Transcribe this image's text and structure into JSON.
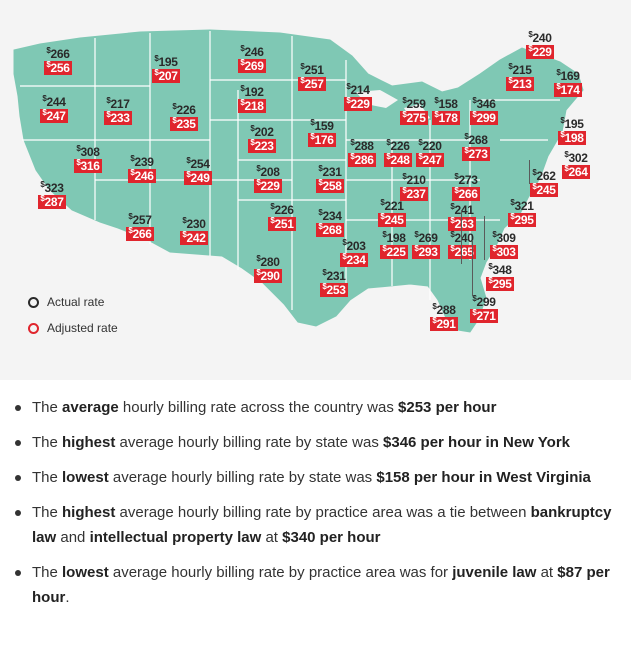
{
  "map": {
    "colors": {
      "land": "#7fc8b4",
      "border": "#ffffff",
      "badge": "#e0252d",
      "actual_text": "#2a2a2a",
      "background": "#f4f4f4"
    },
    "currency_symbol": "$",
    "states": [
      {
        "actual": "266",
        "adjusted": "256"
      },
      {
        "actual": "195",
        "adjusted": "207"
      },
      {
        "actual": "246",
        "adjusted": "269"
      },
      {
        "actual": "251",
        "adjusted": "257"
      },
      {
        "actual": "240",
        "adjusted": "229"
      },
      {
        "actual": "215",
        "adjusted": "213"
      },
      {
        "actual": "169",
        "adjusted": "174"
      },
      {
        "actual": "244",
        "adjusted": "247"
      },
      {
        "actual": "217",
        "adjusted": "233"
      },
      {
        "actual": "192",
        "adjusted": "218"
      },
      {
        "actual": "226",
        "adjusted": "235"
      },
      {
        "actual": "214",
        "adjusted": "229"
      },
      {
        "actual": "259",
        "adjusted": "275"
      },
      {
        "actual": "158",
        "adjusted": "178"
      },
      {
        "actual": "346",
        "adjusted": "299"
      },
      {
        "actual": "195",
        "adjusted": "198"
      },
      {
        "actual": "202",
        "adjusted": "223"
      },
      {
        "actual": "159",
        "adjusted": "176"
      },
      {
        "actual": "268",
        "adjusted": "273"
      },
      {
        "actual": "308",
        "adjusted": "316"
      },
      {
        "actual": "288",
        "adjusted": "286"
      },
      {
        "actual": "226",
        "adjusted": "248"
      },
      {
        "actual": "220",
        "adjusted": "247"
      },
      {
        "actual": "302",
        "adjusted": "264"
      },
      {
        "actual": "239",
        "adjusted": "246"
      },
      {
        "actual": "254",
        "adjusted": "249"
      },
      {
        "actual": "208",
        "adjusted": "229"
      },
      {
        "actual": "231",
        "adjusted": "258"
      },
      {
        "actual": "210",
        "adjusted": "237"
      },
      {
        "actual": "273",
        "adjusted": "266"
      },
      {
        "actual": "262",
        "adjusted": "245"
      },
      {
        "actual": "323",
        "adjusted": "287"
      },
      {
        "actual": "321",
        "adjusted": "295"
      },
      {
        "actual": "221",
        "adjusted": "245"
      },
      {
        "actual": "241",
        "adjusted": "263"
      },
      {
        "actual": "226",
        "adjusted": "251"
      },
      {
        "actual": "234",
        "adjusted": "268"
      },
      {
        "actual": "257",
        "adjusted": "266"
      },
      {
        "actual": "230",
        "adjusted": "242"
      },
      {
        "actual": "198",
        "adjusted": "225"
      },
      {
        "actual": "269",
        "adjusted": "293"
      },
      {
        "actual": "240",
        "adjusted": "265"
      },
      {
        "actual": "309",
        "adjusted": "303"
      },
      {
        "actual": "203",
        "adjusted": "234"
      },
      {
        "actual": "280",
        "adjusted": "290"
      },
      {
        "actual": "348",
        "adjusted": "295"
      },
      {
        "actual": "231",
        "adjusted": "253"
      },
      {
        "actual": "299",
        "adjusted": "271"
      },
      {
        "actual": "288",
        "adjusted": "291"
      }
    ],
    "legend": {
      "actual_label": "Actual rate",
      "adjusted_label": "Adjusted rate"
    }
  },
  "bullets": [
    [
      {
        "t": "The ",
        "b": false
      },
      {
        "t": "average",
        "b": true
      },
      {
        "t": " hourly billing rate across the country was ",
        "b": false
      },
      {
        "t": "$253 per hour",
        "b": true
      }
    ],
    [
      {
        "t": "The ",
        "b": false
      },
      {
        "t": "highest",
        "b": true
      },
      {
        "t": " average hourly billing rate by state was ",
        "b": false
      },
      {
        "t": "$346 per hour in New York",
        "b": true
      }
    ],
    [
      {
        "t": "The ",
        "b": false
      },
      {
        "t": "lowest",
        "b": true
      },
      {
        "t": " average hourly billing rate by state was ",
        "b": false
      },
      {
        "t": "$158 per hour in West Virginia",
        "b": true
      }
    ],
    [
      {
        "t": "The ",
        "b": false
      },
      {
        "t": "highest",
        "b": true
      },
      {
        "t": " average hourly billing rate by practice area was a tie between ",
        "b": false
      },
      {
        "t": "bankruptcy law",
        "b": true
      },
      {
        "t": " and ",
        "b": false
      },
      {
        "t": "intellectual property law",
        "b": true
      },
      {
        "t": " at ",
        "b": false
      },
      {
        "t": "$340 per hour",
        "b": true
      }
    ],
    [
      {
        "t": "The ",
        "b": false
      },
      {
        "t": "lowest",
        "b": true
      },
      {
        "t": " average hourly billing rate by practice area was for ",
        "b": false
      },
      {
        "t": "juvenile law",
        "b": true
      },
      {
        "t": " at ",
        "b": false
      },
      {
        "t": "$87 per hour",
        "b": true
      },
      {
        "t": ".",
        "b": false
      }
    ]
  ]
}
